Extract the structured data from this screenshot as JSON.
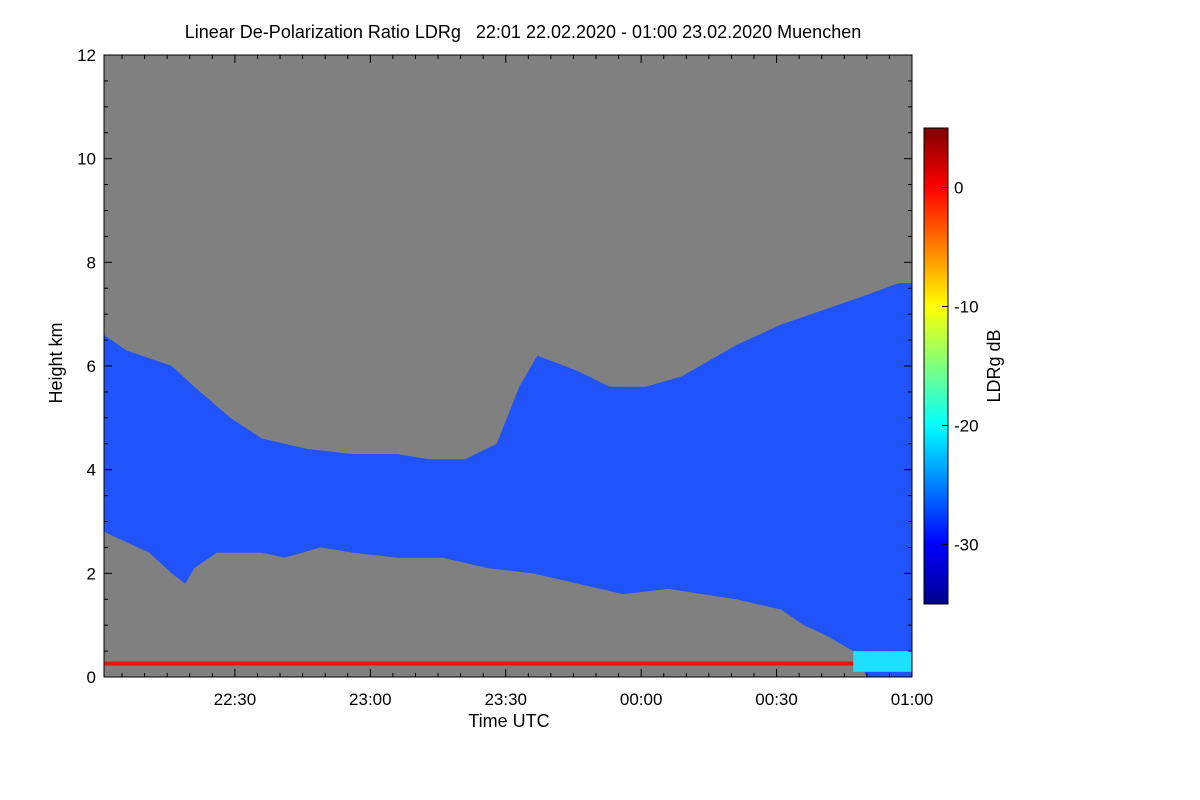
{
  "chart_data": {
    "type": "heatmap",
    "title": "Linear De-Polarization Ratio LDRg   22:01 22.02.2020 - 01:00 23.02.2020 Muenchen",
    "xlabel": "Time UTC",
    "ylabel": "Height km",
    "x_range_minutes": [
      0,
      179
    ],
    "x_ticks": [
      {
        "label": "22:30",
        "minute": 29
      },
      {
        "label": "23:00",
        "minute": 59
      },
      {
        "label": "23:30",
        "minute": 89
      },
      {
        "label": "00:00",
        "minute": 119
      },
      {
        "label": "00:30",
        "minute": 149
      },
      {
        "label": "01:00",
        "minute": 179
      }
    ],
    "ylim": [
      0,
      12
    ],
    "y_ticks": [
      0,
      2,
      4,
      6,
      8,
      10,
      12
    ],
    "colorbar": {
      "label": "LDRg dB",
      "range": [
        -35,
        5
      ],
      "ticks": [
        0,
        -10,
        -20,
        -30
      ],
      "colormap": "jet"
    },
    "background_color": "#808080",
    "layers": [
      {
        "name": "cirrus cloud (low LDRg)",
        "approx_ldr_db": -29,
        "color": "#1a50ff",
        "top_km": [
          [
            0,
            6.6
          ],
          [
            5,
            6.3
          ],
          [
            15,
            6.0
          ],
          [
            20,
            5.6
          ],
          [
            28,
            5.0
          ],
          [
            35,
            4.6
          ],
          [
            45,
            4.4
          ],
          [
            55,
            4.3
          ],
          [
            65,
            4.3
          ],
          [
            72,
            4.2
          ],
          [
            80,
            4.2
          ],
          [
            87,
            4.5
          ],
          [
            92,
            5.6
          ],
          [
            96,
            6.2
          ],
          [
            105,
            5.9
          ],
          [
            112,
            5.6
          ],
          [
            120,
            5.6
          ],
          [
            128,
            5.8
          ],
          [
            140,
            6.4
          ],
          [
            150,
            6.8
          ],
          [
            160,
            7.1
          ],
          [
            170,
            7.4
          ],
          [
            176,
            7.6
          ],
          [
            179,
            7.6
          ]
        ],
        "bottom_km": [
          [
            0,
            2.8
          ],
          [
            5,
            2.6
          ],
          [
            10,
            2.4
          ],
          [
            15,
            2.0
          ],
          [
            18,
            1.8
          ],
          [
            20,
            2.1
          ],
          [
            25,
            2.4
          ],
          [
            35,
            2.4
          ],
          [
            40,
            2.3
          ],
          [
            48,
            2.5
          ],
          [
            55,
            2.4
          ],
          [
            65,
            2.3
          ],
          [
            75,
            2.3
          ],
          [
            85,
            2.1
          ],
          [
            95,
            2.0
          ],
          [
            105,
            1.8
          ],
          [
            115,
            1.6
          ],
          [
            125,
            1.7
          ],
          [
            140,
            1.5
          ],
          [
            150,
            1.3
          ],
          [
            155,
            1.0
          ],
          [
            160,
            0.8
          ],
          [
            166,
            0.5
          ],
          [
            169,
            0.0
          ],
          [
            179,
            0.0
          ]
        ]
      },
      {
        "name": "aerosol layer near ground (high LDRg)",
        "approx_ldr_db": 0,
        "color": "#e21a00",
        "height_km": 0.26,
        "minute_range": [
          0,
          166
        ]
      },
      {
        "name": "depolarizing aerosol patch",
        "approx_ldr_db": -21,
        "color": "#20e0ff",
        "minute_range": [
          166,
          179
        ],
        "height_range_km": [
          0.1,
          0.5
        ]
      }
    ]
  }
}
